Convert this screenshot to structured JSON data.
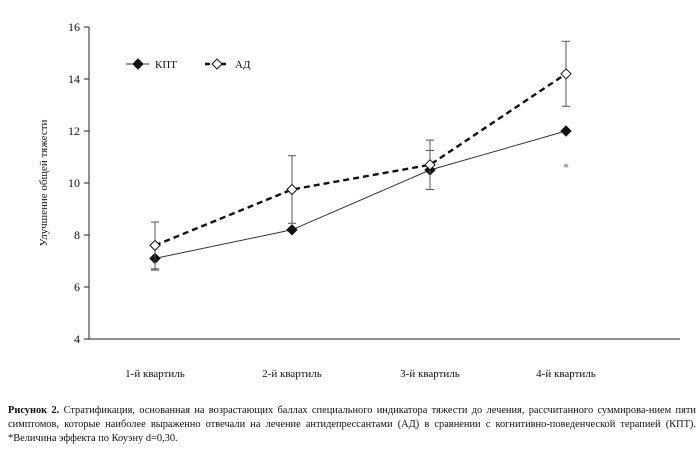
{
  "chart_data": {
    "type": "line",
    "categories": [
      "1-й квартиль",
      "2-й квартиль",
      "3-й квартиль",
      "4-й квартиль"
    ],
    "ylabel": "Улучшение общей тяжести",
    "xlabel": "",
    "ylim": [
      4,
      16
    ],
    "yticks": [
      4,
      6,
      8,
      10,
      12,
      14,
      16
    ],
    "grid": false,
    "legend_position": "top-left",
    "series": [
      {
        "name": "КПТ",
        "values": [
          7.1,
          8.2,
          10.5,
          12.0
        ],
        "err": [
          0.45,
          null,
          0.75,
          null
        ],
        "style": "solid",
        "marker": "filled-diamond",
        "color": "#333333"
      },
      {
        "name": "АД",
        "values": [
          7.6,
          9.75,
          10.7,
          14.2
        ],
        "err": [
          0.9,
          1.3,
          0.95,
          1.25
        ],
        "style": "dashed",
        "marker": "open-diamond",
        "color": "#111111"
      }
    ],
    "annotations": [
      {
        "text": "*",
        "category": "4-й квартиль",
        "y": 10.7
      }
    ]
  },
  "caption": {
    "label": "Рисунок 2.",
    "text": "Стратификация, основанная на возрастающих баллах специального индикатора тяжести до лечения, рассчитанного суммирова-нием пяти симптомов, которые наиболее выраженно отвечали на лечение антидепрессантами (АД) в сравнении с когнитивно-поведенческой терапией (КПТ). *Величина эффекта по Коуэну d=0,30."
  }
}
